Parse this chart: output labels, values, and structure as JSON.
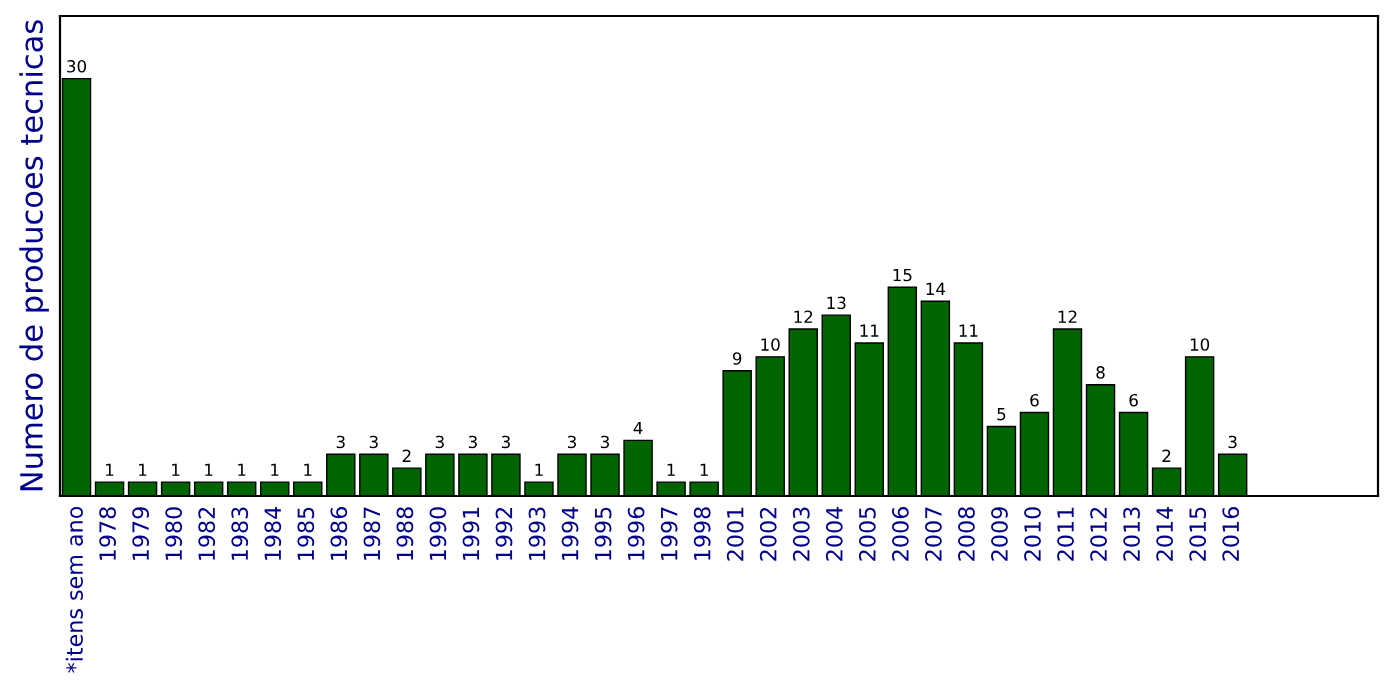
{
  "chart_data": {
    "type": "bar",
    "ylabel": "Numero de producoes tecnicas",
    "categories": [
      "*itens sem ano",
      "1978",
      "1979",
      "1980",
      "1982",
      "1983",
      "1984",
      "1985",
      "1986",
      "1987",
      "1988",
      "1990",
      "1991",
      "1992",
      "1993",
      "1994",
      "1995",
      "1996",
      "1997",
      "1998",
      "2001",
      "2002",
      "2003",
      "2004",
      "2005",
      "2006",
      "2007",
      "2008",
      "2009",
      "2010",
      "2011",
      "2012",
      "2013",
      "2014",
      "2015",
      "2016"
    ],
    "values": [
      30,
      1,
      1,
      1,
      1,
      1,
      1,
      1,
      3,
      3,
      2,
      3,
      3,
      3,
      1,
      3,
      3,
      4,
      1,
      1,
      9,
      10,
      12,
      13,
      11,
      15,
      14,
      11,
      5,
      6,
      12,
      8,
      6,
      2,
      10,
      3
    ],
    "color": "#006400",
    "data_labels": true,
    "grid": false,
    "legend": false,
    "tick_labels": "x"
  }
}
